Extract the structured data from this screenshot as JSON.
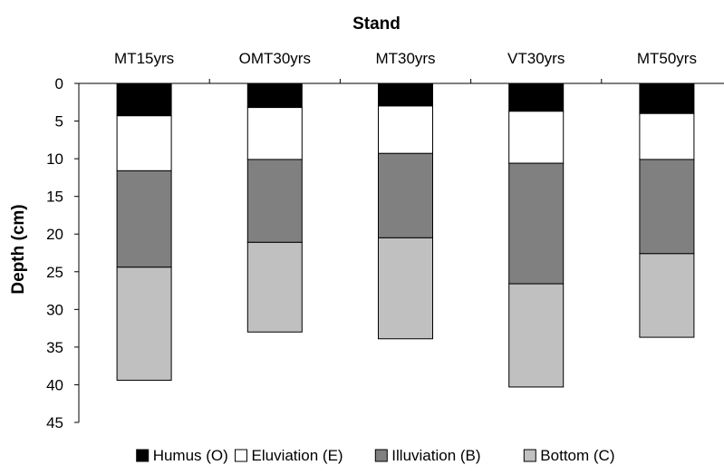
{
  "chart_data": {
    "type": "bar",
    "stacked": true,
    "orientation": "vertical-depth",
    "x_axis_position": "top",
    "y_axis_inverted": true,
    "xlabel": "Stand",
    "ylabel": "Depth (cm)",
    "ylim": [
      0,
      45
    ],
    "yticks": [
      0,
      5,
      10,
      15,
      20,
      25,
      30,
      35,
      40,
      45
    ],
    "categories": [
      "MT15yrs",
      "OMT30yrs",
      "MT30yrs",
      "VT30yrs",
      "MT50yrs"
    ],
    "grid": false,
    "legend_position": "bottom",
    "series": [
      {
        "name": "Humus (O)",
        "color": "#000000",
        "values": [
          4.3,
          3.2,
          3.0,
          3.7,
          4.0
        ]
      },
      {
        "name": "Eluviation (E)",
        "color": "#ffffff",
        "values": [
          7.3,
          6.9,
          6.3,
          6.9,
          6.1
        ]
      },
      {
        "name": "Illuviation (B)",
        "color": "#808080",
        "values": [
          12.8,
          11.0,
          11.2,
          16.0,
          12.5
        ]
      },
      {
        "name": "Bottom (C)",
        "color": "#c0c0c0",
        "values": [
          15.0,
          11.9,
          13.4,
          13.7,
          11.1
        ]
      }
    ]
  }
}
